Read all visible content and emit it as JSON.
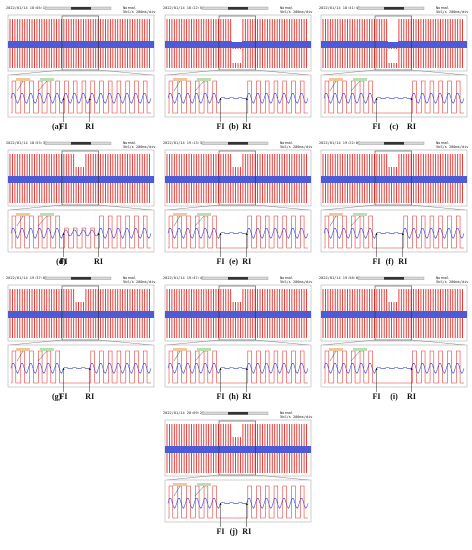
{
  "chart_data": [
    {
      "type": "line",
      "caption": "(a)",
      "timestamp": "2022/01/14 18:05:11",
      "mode": "Normal",
      "rate": "5kS/s 200ms/div",
      "fault_markers": [
        "FI",
        "RI"
      ],
      "fault": "none",
      "fault_start_cycle": 6,
      "fault_end_cycle": 9
    },
    {
      "type": "line",
      "caption": "(b)",
      "timestamp": "2022/01/14 18:22:54",
      "mode": "Normal",
      "rate": "5kS/s 200ms/div",
      "fault_markers": [
        "FI",
        "RI"
      ],
      "fault": "open",
      "fault_start_cycle": 6,
      "fault_end_cycle": 9
    },
    {
      "type": "line",
      "caption": "(c)",
      "timestamp": "2022/01/14 18:41:42",
      "mode": "Normal",
      "rate": "5kS/s 200ms/div",
      "fault_markers": [
        "FI",
        "RI"
      ],
      "fault": "open",
      "fault_start_cycle": 6,
      "fault_end_cycle": 10
    },
    {
      "type": "line",
      "caption": "(d)",
      "timestamp": "2022/01/14 18:53:32",
      "mode": "Normal",
      "rate": "5kS/s 200ms/div",
      "fault_markers": [
        "FI",
        "RI"
      ],
      "fault": "half",
      "fault_start_cycle": 6,
      "fault_end_cycle": 10
    },
    {
      "type": "line",
      "caption": "(e)",
      "timestamp": "2022/01/14 19:13:36",
      "mode": "Normal",
      "rate": "5kS/s 200ms/div",
      "fault_markers": [
        "FI",
        "RI"
      ],
      "fault": "flat-short",
      "fault_start_cycle": 6,
      "fault_end_cycle": 9
    },
    {
      "type": "line",
      "caption": "(f)",
      "timestamp": "2022/01/14 19:22:08",
      "mode": "Normal",
      "rate": "5kS/s 200ms/div",
      "fault_markers": [
        "FI",
        "RI"
      ],
      "fault": "flat-short",
      "fault_start_cycle": 6,
      "fault_end_cycle": 9
    },
    {
      "type": "line",
      "caption": "(g)",
      "timestamp": "2022/01/14 19:37:05",
      "mode": "Normal",
      "rate": "5kS/s 200ms/div",
      "fault_markers": [
        "FI",
        "RI"
      ],
      "fault": "flat-short",
      "fault_start_cycle": 6,
      "fault_end_cycle": 9
    },
    {
      "type": "line",
      "caption": "(h)",
      "timestamp": "2022/01/14 19:47:45",
      "mode": "Normal",
      "rate": "5kS/s 200ms/div",
      "fault_markers": [
        "FI",
        "RI"
      ],
      "fault": "flat-short",
      "fault_start_cycle": 6,
      "fault_end_cycle": 9
    },
    {
      "type": "line",
      "caption": "(i)",
      "timestamp": "2022/01/14 19:58:01",
      "mode": "Normal",
      "rate": "5kS/s 200ms/div",
      "fault_markers": [
        "FI",
        "RI"
      ],
      "fault": "flat-short",
      "fault_start_cycle": 6,
      "fault_end_cycle": 10
    },
    {
      "type": "line",
      "caption": "(j)",
      "timestamp": "2022/01/14 20:09:25",
      "mode": "Normal",
      "rate": "5kS/s 200ms/div",
      "fault_markers": [
        "FI",
        "RI"
      ],
      "fault": "flat-short",
      "fault_start_cycle": 6,
      "fault_end_cycle": 9
    }
  ],
  "colors": {
    "phase_a": "#e0302c",
    "phase_b": "#2e3fcf",
    "trace_bg": "#ffffff",
    "label_green": "#b8dfb0",
    "label_orange": "#f3c59a"
  }
}
